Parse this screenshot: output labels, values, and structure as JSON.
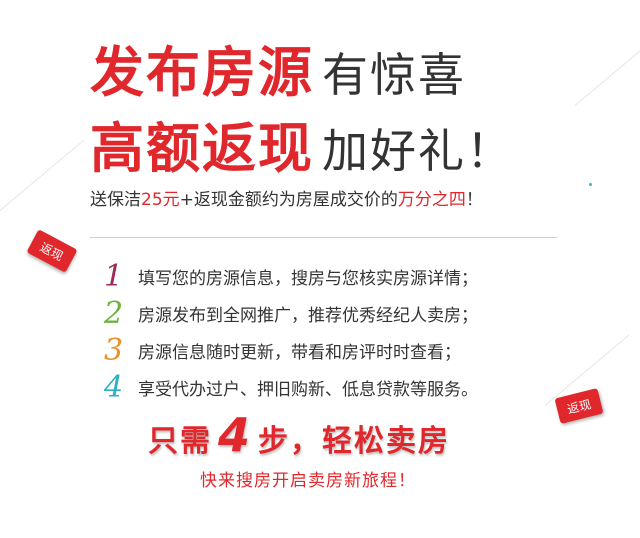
{
  "headline": {
    "line1_red": "发布房源",
    "line1_dark": "有惊喜",
    "line2_red": "高额返现",
    "line2_dark": "加好礼！"
  },
  "subline": {
    "prefix": "送保洁",
    "amount": "25元",
    "middle": "+返现金额约为房屋成交价的",
    "ratio": "万分之四",
    "suffix": "！"
  },
  "steps": [
    {
      "number": "1",
      "color": "#9b2c5a",
      "text": "填写您的房源信息，搜房与您核实房源详情；"
    },
    {
      "number": "2",
      "color": "#6db33f",
      "text": "房源发布到全网推广，推荐优秀经纪人卖房；"
    },
    {
      "number": "3",
      "color": "#e8932a",
      "text": "房源信息随时更新，带看和房评时时查看；"
    },
    {
      "number": "4",
      "color": "#2bb1c0",
      "text": "享受代办过户、押旧购新、低息贷款等服务。"
    }
  ],
  "tagline": {
    "before": "只需",
    "count": "4",
    "after": "步，轻松卖房"
  },
  "cta": "快来搜房开启卖房新旅程！",
  "flags": {
    "left": "返现",
    "right": "返现"
  },
  "colors": {
    "accent": "#e0272c",
    "text": "#333333"
  }
}
